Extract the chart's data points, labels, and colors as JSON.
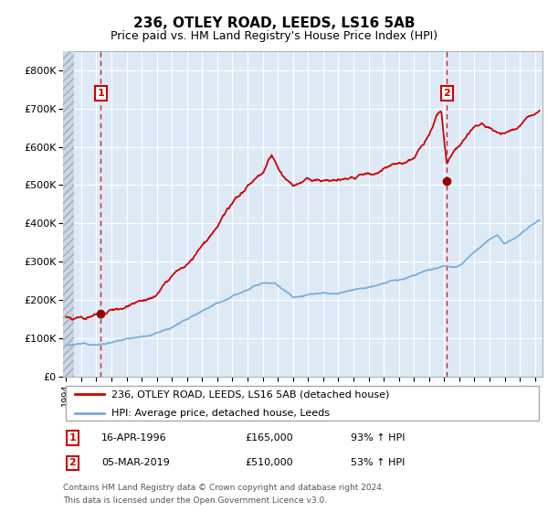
{
  "title": "236, OTLEY ROAD, LEEDS, LS16 5AB",
  "subtitle": "Price paid vs. HM Land Registry's House Price Index (HPI)",
  "hpi_label": "HPI: Average price, detached house, Leeds",
  "property_label": "236, OTLEY ROAD, LEEDS, LS16 5AB (detached house)",
  "sale1_date": "16-APR-1996",
  "sale1_price": 165000,
  "sale1_hpi": "93% ↑ HPI",
  "sale2_date": "05-MAR-2019",
  "sale2_price": 510000,
  "sale2_hpi": "53% ↑ HPI",
  "sale1_year": 1996.29,
  "sale2_year": 2019.17,
  "red_line_color": "#cc0000",
  "blue_line_color": "#7aaddc",
  "bg_color": "#ddeaf6",
  "grid_color": "#ffffff",
  "label_box_color": "#cc0000",
  "ylim_max": 850000,
  "xlim_min": 1993.8,
  "xlim_max": 2025.5,
  "footer": "Contains HM Land Registry data © Crown copyright and database right 2024.\nThis data is licensed under the Open Government Licence v3.0."
}
